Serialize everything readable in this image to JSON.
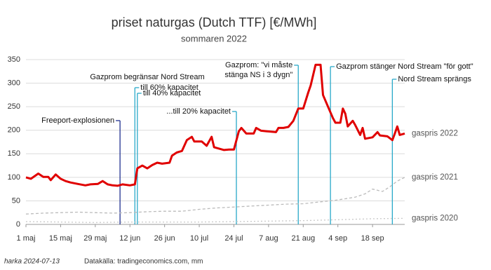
{
  "chart_data": {
    "type": "line",
    "title": "priset naturgas (Dutch TTF) [€/MWh]",
    "subtitle": "sommaren 2022",
    "xlim": [
      0,
      153
    ],
    "xticks": [
      {
        "value": 0,
        "label": "1 maj"
      },
      {
        "value": 14,
        "label": "15 maj"
      },
      {
        "value": 28,
        "label": "29 maj"
      },
      {
        "value": 42,
        "label": "12 jun"
      },
      {
        "value": 56,
        "label": "26 jun"
      },
      {
        "value": 70,
        "label": "10 jul"
      },
      {
        "value": 84,
        "label": "24 jul"
      },
      {
        "value": 98,
        "label": "7 aug"
      },
      {
        "value": 112,
        "label": "21 aug"
      },
      {
        "value": 126,
        "label": "4 sep"
      },
      {
        "value": 140,
        "label": "18 sep"
      }
    ],
    "ylim": [
      0,
      350
    ],
    "yticks": [
      0,
      50,
      100,
      150,
      200,
      250,
      300,
      350
    ],
    "grid": true,
    "series": [
      {
        "name": "gaspris 2022",
        "color": "#e00000",
        "style": "solid",
        "x": [
          0,
          2,
          5,
          7,
          9,
          10,
          12,
          14,
          16,
          18,
          21,
          24,
          26,
          29,
          31,
          33,
          35,
          37,
          39,
          42,
          44,
          45,
          47,
          49,
          51,
          53,
          55,
          58,
          59,
          61,
          63,
          65,
          67,
          68,
          71,
          73,
          75,
          76,
          78,
          80,
          82,
          84,
          86,
          87,
          89,
          92,
          93,
          95,
          97,
          101,
          102,
          104,
          106,
          108,
          110,
          112,
          114,
          115,
          117,
          119,
          120,
          122,
          123,
          124,
          125,
          127,
          128,
          129,
          130,
          132,
          133,
          135,
          136,
          137,
          140,
          142,
          143,
          146,
          148,
          149,
          150,
          151,
          153
        ],
        "values": [
          100,
          97,
          108,
          101,
          101,
          94,
          106,
          97,
          92,
          89,
          86,
          83,
          85,
          86,
          92,
          85,
          83,
          82,
          85,
          83,
          85,
          119,
          125,
          119,
          126,
          131,
          129,
          131,
          146,
          153,
          156,
          179,
          186,
          176,
          176,
          167,
          186,
          164,
          161,
          158,
          159,
          159,
          198,
          205,
          193,
          193,
          205,
          199,
          198,
          196,
          205,
          205,
          207,
          220,
          246,
          246,
          280,
          295,
          339,
          339,
          275,
          250,
          238,
          226,
          216,
          216,
          246,
          235,
          208,
          220,
          211,
          190,
          205,
          182,
          185,
          196,
          189,
          187,
          179,
          193,
          208,
          190,
          193
        ]
      },
      {
        "name": "gaspris 2021",
        "color": "#bbbbbb",
        "style": "dashed",
        "x": [
          0,
          7,
          14,
          21,
          28,
          35,
          42,
          49,
          56,
          63,
          70,
          77,
          84,
          91,
          98,
          105,
          112,
          119,
          126,
          133,
          137,
          140,
          144,
          147,
          150,
          153
        ],
        "values": [
          22,
          24,
          25,
          26,
          25,
          24,
          25,
          27,
          28,
          28,
          32,
          35,
          37,
          39,
          41,
          43,
          44,
          48,
          52,
          58,
          65,
          75,
          70,
          80,
          92,
          100
        ]
      },
      {
        "name": "gaspris 2020",
        "color": "#c8c8c8",
        "style": "dotted",
        "x": [
          0,
          14,
          28,
          42,
          56,
          70,
          84,
          98,
          112,
          126,
          140,
          153
        ],
        "values": [
          6,
          5,
          4,
          5,
          5,
          5,
          6,
          7,
          8,
          10,
          12,
          13
        ]
      }
    ],
    "annotation_heading": "Gazprom begränsar Nord Stream",
    "annotations": [
      {
        "x": 38,
        "color": "#1f2f8f",
        "lines": [
          "Freeport-explosionen"
        ]
      },
      {
        "x": 44,
        "color": "#29a9c9",
        "lines": [
          "till 60% kapacitet"
        ]
      },
      {
        "x": 45,
        "color": "#29a9c9",
        "lines": [
          "till 40% kapacitet"
        ]
      },
      {
        "x": 85,
        "color": "#29a9c9",
        "lines": [
          "...till 20% kapacitet"
        ]
      },
      {
        "x": 110,
        "color": "#29a9c9",
        "lines": [
          "Gazprom: \"vi måste",
          "stänga NS i 3 dygn\""
        ]
      },
      {
        "x": 123,
        "color": "#29a9c9",
        "lines": [
          "Gazprom stänger Nord Stream \"för gott\""
        ]
      },
      {
        "x": 148,
        "color": "#29a9c9",
        "lines": [
          "Nord Stream sprängs"
        ]
      }
    ],
    "footer_left": "harka 2024-07-13",
    "footer_right": "Datakälla: tradingeconomics.com, mm"
  }
}
